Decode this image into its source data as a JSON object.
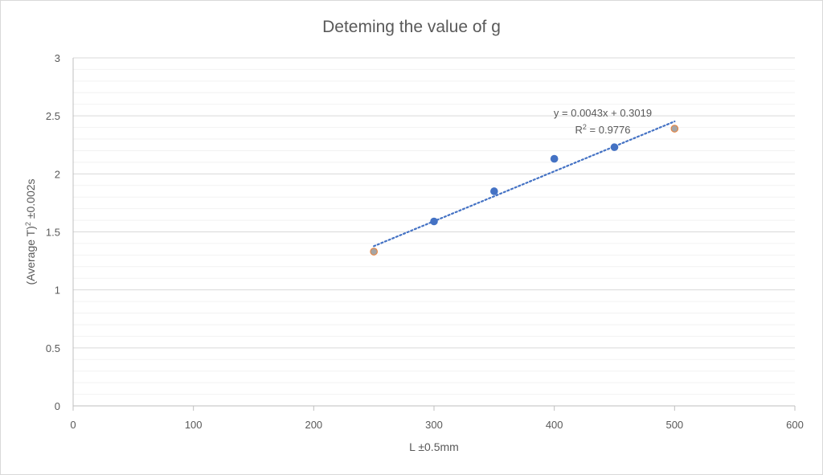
{
  "chart_data": {
    "type": "scatter",
    "title": "Deteming the value of g",
    "xlabel": "L ±0.5mm",
    "ylabel_main": "(Average T)",
    "ylabel_sup": "2",
    "ylabel_rest": " ±0.002s",
    "xlim": [
      0,
      600
    ],
    "ylim": [
      0,
      3
    ],
    "x_ticks": [
      0,
      100,
      200,
      300,
      400,
      500,
      600
    ],
    "y_ticks": [
      0,
      0.5,
      1,
      1.5,
      2,
      2.5,
      3
    ],
    "y_minor_step": 0.1,
    "grid": true,
    "series": [
      {
        "color": "#4472c4",
        "points": [
          {
            "x": 300,
            "y": 1.59
          },
          {
            "x": 350,
            "y": 1.85
          },
          {
            "x": 400,
            "y": 2.13
          },
          {
            "x": 450,
            "y": 2.23
          }
        ]
      },
      {
        "color": "#ed7d31",
        "points": [
          {
            "x": 250,
            "y": 1.33
          },
          {
            "x": 500,
            "y": 2.39
          }
        ]
      },
      {
        "color": "#a5a5a5",
        "points": [
          {
            "x": 250,
            "y": 1.33
          },
          {
            "x": 500,
            "y": 2.39
          }
        ]
      }
    ],
    "trendline": {
      "slope": 0.0043,
      "intercept": 0.3019,
      "x_range": [
        250,
        500
      ],
      "color": "#4472c4",
      "style": "dotted",
      "equation": "y = 0.0043x + 0.3019",
      "r2_prefix": "R",
      "r2_sup": "2",
      "r2_value": " = 0.9776"
    }
  }
}
